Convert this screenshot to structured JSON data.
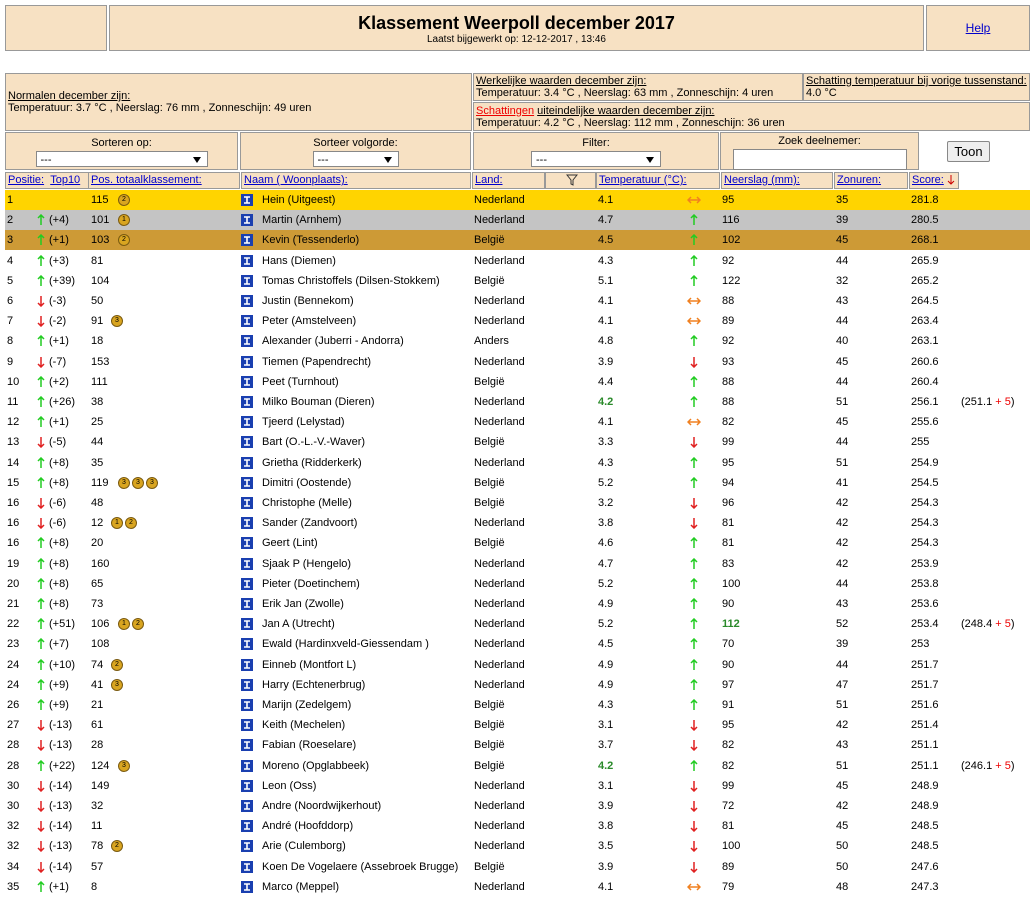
{
  "header": {
    "title": "Klassement Weerpoll december 2017",
    "updated": "Laatst bijgewerkt op: 12-12-2017 , 13:46",
    "help": "Help"
  },
  "info": {
    "normals_label": "Normalen december zijn:",
    "normals": "Temperatuur: 3.7 °C , Neerslag: 76 mm , Zonneschijn: 49 uren",
    "actual_label": "Werkelijke waarden december zijn:",
    "actual": "Temperatuur: 3.4 °C , Neerslag: 63 mm , Zonneschijn: 4 uren",
    "previous_label": "Schatting temperatuur bij vorige tussenstand:",
    "previous": "4.0 °C",
    "estimates_link": "Schattingen",
    "estimates_label": "uiteindelijke waarden december zijn:",
    "estimates": "Temperatuur: 4.2 °C , Neerslag: 112 mm , Zonneschijn: 36 uren"
  },
  "controls": {
    "sort_label": "Sorteren op:",
    "sort_value": "---",
    "order_label": "Sorteer volgorde:",
    "order_value": "---",
    "filter_label": "Filter:",
    "filter_value": "---",
    "search_label": "Zoek deelnemer:",
    "button": "Toon"
  },
  "table": {
    "headers": {
      "position": "Positie:",
      "top10": "Top10",
      "total": "Pos. totaalklassement:",
      "name": "Naam ( Woonplaats):",
      "land": "Land:",
      "temp": "Temperatuur (°C):",
      "rain": "Neerslag (mm):",
      "sun": "Zonuren:",
      "score": "Score:"
    },
    "rows": [
      {
        "pos": 1,
        "total": 115,
        "medals": [
          2
        ],
        "name": "Hein (Uitgeest)",
        "land": "Nederland",
        "temp": 4.1,
        "temp_trend": "both",
        "rain": 95,
        "sun": 35,
        "score": 281.8
      },
      {
        "pos": 2,
        "trend": "up",
        "change": "(+4)",
        "total": 101,
        "medals": [
          1
        ],
        "name": "Martin (Arnhem)",
        "land": "Nederland",
        "temp": 4.7,
        "temp_trend": "up",
        "rain": 116,
        "sun": 39,
        "score": 280.5
      },
      {
        "pos": 3,
        "trend": "up",
        "change": "(+1)",
        "total": 103,
        "medals": [
          2
        ],
        "name": "Kevin (Tessenderlo)",
        "land": "België",
        "temp": 4.5,
        "temp_trend": "up",
        "rain": 102,
        "sun": 45,
        "score": 268.1
      },
      {
        "pos": 4,
        "trend": "up",
        "change": "(+3)",
        "total": 81,
        "name": "Hans (Diemen)",
        "land": "Nederland",
        "temp": 4.3,
        "temp_trend": "up",
        "rain": 92,
        "sun": 44,
        "score": 265.9
      },
      {
        "pos": 5,
        "trend": "up",
        "change": "(+39)",
        "total": 104,
        "name": "Tomas Christoffels (Dilsen-Stokkem)",
        "land": "België",
        "temp": 5.1,
        "temp_trend": "up",
        "rain": 122,
        "sun": 32,
        "score": 265.2
      },
      {
        "pos": 6,
        "trend": "down",
        "change": "(-3)",
        "total": 50,
        "name": "Justin (Bennekom)",
        "land": "Nederland",
        "temp": 4.1,
        "temp_trend": "both",
        "rain": 88,
        "sun": 43,
        "score": 264.5
      },
      {
        "pos": 7,
        "trend": "down",
        "change": "(-2)",
        "total": 91,
        "medals": [
          3
        ],
        "name": "Peter (Amstelveen)",
        "land": "Nederland",
        "temp": 4.1,
        "temp_trend": "both",
        "rain": 89,
        "sun": 44,
        "score": 263.4
      },
      {
        "pos": 8,
        "trend": "up",
        "change": "(+1)",
        "total": 18,
        "name": "Alexander (Juberri - Andorra)",
        "land": "Anders",
        "temp": 4.8,
        "temp_trend": "up",
        "rain": 92,
        "sun": 40,
        "score": 263.1
      },
      {
        "pos": 9,
        "trend": "down",
        "change": "(-7)",
        "total": 153,
        "name": "Tiemen (Papendrecht)",
        "land": "Nederland",
        "temp": 3.9,
        "temp_trend": "down",
        "rain": 93,
        "sun": 45,
        "score": 260.6
      },
      {
        "pos": 10,
        "trend": "up",
        "change": "(+2)",
        "total": 111,
        "name": "Peet (Turnhout)",
        "land": "België",
        "temp": 4.4,
        "temp_trend": "up",
        "rain": 88,
        "sun": 44,
        "score": 260.4
      },
      {
        "pos": 11,
        "trend": "up",
        "change": "(+26)",
        "total": 38,
        "name": "Milko Bouman (Dieren)",
        "land": "Nederland",
        "temp": 4.2,
        "highlight": "temp",
        "temp_trend": "up",
        "rain": 88,
        "sun": 51,
        "score": 256.1,
        "bonus": [
          "(251.1",
          "+ 5",
          ")"
        ]
      },
      {
        "pos": 12,
        "trend": "up",
        "change": "(+1)",
        "total": 25,
        "name": "Tjeerd (Lelystad)",
        "land": "Nederland",
        "temp": 4.1,
        "temp_trend": "both",
        "rain": 82,
        "sun": 45,
        "score": 255.6
      },
      {
        "pos": 13,
        "trend": "down",
        "change": "(-5)",
        "total": 44,
        "name": "Bart (O.-L.-V.-Waver)",
        "land": "België",
        "temp": 3.3,
        "temp_trend": "down",
        "rain": 99,
        "sun": 44,
        "score": 255
      },
      {
        "pos": 14,
        "trend": "up",
        "change": "(+8)",
        "total": 35,
        "name": "Grietha (Ridderkerk)",
        "land": "Nederland",
        "temp": 4.3,
        "temp_trend": "up",
        "rain": 95,
        "sun": 51,
        "score": 254.9
      },
      {
        "pos": 15,
        "trend": "up",
        "change": "(+8)",
        "total": 119,
        "medals": [
          3,
          3,
          3
        ],
        "name": "Dimitri (Oostende)",
        "land": "België",
        "temp": 5.2,
        "temp_trend": "up",
        "rain": 94,
        "sun": 41,
        "score": 254.5
      },
      {
        "pos": 16,
        "trend": "down",
        "change": "(-6)",
        "total": 48,
        "name": "Christophe (Melle)",
        "land": "België",
        "temp": 3.2,
        "temp_trend": "down",
        "rain": 96,
        "sun": 42,
        "score": 254.3
      },
      {
        "pos": 16,
        "trend": "down",
        "change": "(-6)",
        "total": 12,
        "medals": [
          1,
          2
        ],
        "name": "Sander (Zandvoort)",
        "land": "Nederland",
        "temp": 3.8,
        "temp_trend": "down",
        "rain": 81,
        "sun": 42,
        "score": 254.3
      },
      {
        "pos": 16,
        "trend": "up",
        "change": "(+8)",
        "total": 20,
        "name": "Geert (Lint)",
        "land": "België",
        "temp": 4.6,
        "temp_trend": "up",
        "rain": 81,
        "sun": 42,
        "score": 254.3
      },
      {
        "pos": 19,
        "trend": "up",
        "change": "(+8)",
        "total": 160,
        "name": "Sjaak P (Hengelo)",
        "land": "Nederland",
        "temp": 4.7,
        "temp_trend": "up",
        "rain": 83,
        "sun": 42,
        "score": 253.9
      },
      {
        "pos": 20,
        "trend": "up",
        "change": "(+8)",
        "total": 65,
        "name": "Pieter (Doetinchem)",
        "land": "Nederland",
        "temp": 5.2,
        "temp_trend": "up",
        "rain": 100,
        "sun": 44,
        "score": 253.8
      },
      {
        "pos": 21,
        "trend": "up",
        "change": "(+8)",
        "total": 73,
        "name": "Erik Jan (Zwolle)",
        "land": "Nederland",
        "temp": 4.9,
        "temp_trend": "up",
        "rain": 90,
        "sun": 43,
        "score": 253.6
      },
      {
        "pos": 22,
        "trend": "up",
        "change": "(+51)",
        "total": 106,
        "medals": [
          1,
          2
        ],
        "name": "Jan A (Utrecht)",
        "land": "Nederland",
        "temp": 5.2,
        "temp_trend": "up",
        "rain": 112,
        "highlight": "rain",
        "sun": 52,
        "score": 253.4,
        "bonus": [
          "(248.4",
          "+ 5",
          ")"
        ]
      },
      {
        "pos": 23,
        "trend": "up",
        "change": "(+7)",
        "total": 108,
        "name": "Ewald (Hardinxveld-Giessendam )",
        "land": "Nederland",
        "temp": 4.5,
        "temp_trend": "up",
        "rain": 70,
        "sun": 39,
        "score": 253
      },
      {
        "pos": 24,
        "trend": "up",
        "change": "(+10)",
        "total": 74,
        "medals": [
          2
        ],
        "name": "Einneb (Montfort L)",
        "land": "Nederland",
        "temp": 4.9,
        "temp_trend": "up",
        "rain": 90,
        "sun": 44,
        "score": 251.7
      },
      {
        "pos": 24,
        "trend": "up",
        "change": "(+9)",
        "total": 41,
        "medals": [
          3
        ],
        "name": "Harry (Echtenerbrug)",
        "land": "Nederland",
        "temp": 4.9,
        "temp_trend": "up",
        "rain": 97,
        "sun": 47,
        "score": 251.7
      },
      {
        "pos": 26,
        "trend": "up",
        "change": "(+9)",
        "total": 21,
        "name": "Marijn (Zedelgem)",
        "land": "België",
        "temp": 4.3,
        "temp_trend": "up",
        "rain": 91,
        "sun": 51,
        "score": 251.6
      },
      {
        "pos": 27,
        "trend": "down",
        "change": "(-13)",
        "total": 61,
        "name": "Keith (Mechelen)",
        "land": "België",
        "temp": 3.1,
        "temp_trend": "down",
        "rain": 95,
        "sun": 42,
        "score": 251.4
      },
      {
        "pos": 28,
        "trend": "down",
        "change": "(-13)",
        "total": 28,
        "name": "Fabian (Roeselare)",
        "land": "België",
        "temp": 3.7,
        "temp_trend": "down",
        "rain": 82,
        "sun": 43,
        "score": 251.1
      },
      {
        "pos": 28,
        "trend": "up",
        "change": "(+22)",
        "total": 124,
        "medals": [
          3
        ],
        "name": "Moreno (Opglabbeek)",
        "land": "België",
        "temp": 4.2,
        "highlight": "temp",
        "temp_trend": "up",
        "rain": 82,
        "sun": 51,
        "score": 251.1,
        "bonus": [
          "(246.1",
          "+ 5",
          ")"
        ]
      },
      {
        "pos": 30,
        "trend": "down",
        "change": "(-14)",
        "total": 149,
        "name": "Leon (Oss)",
        "land": "Nederland",
        "temp": 3.1,
        "temp_trend": "down",
        "rain": 99,
        "sun": 45,
        "score": 248.9
      },
      {
        "pos": 30,
        "trend": "down",
        "change": "(-13)",
        "total": 32,
        "name": "Andre (Noordwijkerhout)",
        "land": "Nederland",
        "temp": 3.9,
        "temp_trend": "down",
        "rain": 72,
        "sun": 42,
        "score": 248.9
      },
      {
        "pos": 32,
        "trend": "down",
        "change": "(-14)",
        "total": 11,
        "name": "André (Hoofddorp)",
        "land": "Nederland",
        "temp": 3.8,
        "temp_trend": "down",
        "rain": 81,
        "sun": 45,
        "score": 248.5
      },
      {
        "pos": 32,
        "trend": "down",
        "change": "(-13)",
        "total": 78,
        "medals": [
          2
        ],
        "name": "Arie (Culemborg)",
        "land": "Nederland",
        "temp": 3.5,
        "temp_trend": "down",
        "rain": 100,
        "sun": 50,
        "score": 248.5
      },
      {
        "pos": 34,
        "trend": "down",
        "change": "(-14)",
        "total": 57,
        "name": "Koen De Vogelaere (Assebroek Brugge)",
        "land": "België",
        "temp": 3.9,
        "temp_trend": "down",
        "rain": 89,
        "sun": 50,
        "score": 247.6
      },
      {
        "pos": 35,
        "trend": "up",
        "change": "(+1)",
        "total": 8,
        "name": "Marco (Meppel)",
        "land": "Nederland",
        "temp": 4.1,
        "temp_trend": "both",
        "rain": 79,
        "sun": 48,
        "score": 247.3
      }
    ]
  }
}
